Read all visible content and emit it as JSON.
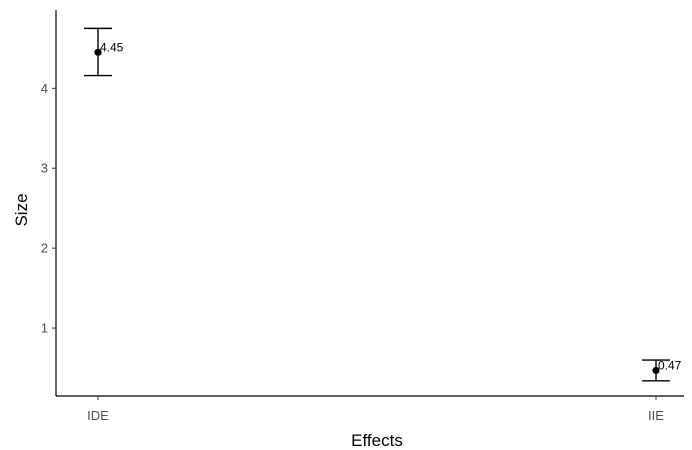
{
  "chart_data": {
    "type": "scatter",
    "categories": [
      "IDE",
      "IIE"
    ],
    "values": [
      4.45,
      0.47
    ],
    "error_lower": [
      4.16,
      0.34
    ],
    "error_upper": [
      4.75,
      0.6
    ],
    "data_labels": [
      "4.45",
      "0.47"
    ],
    "xlabel": "Effects",
    "ylabel": "Size",
    "yticks": [
      "1",
      "2",
      "3",
      "4"
    ],
    "ylim": [
      0.15,
      4.98
    ],
    "grid": false,
    "legend": "none"
  }
}
